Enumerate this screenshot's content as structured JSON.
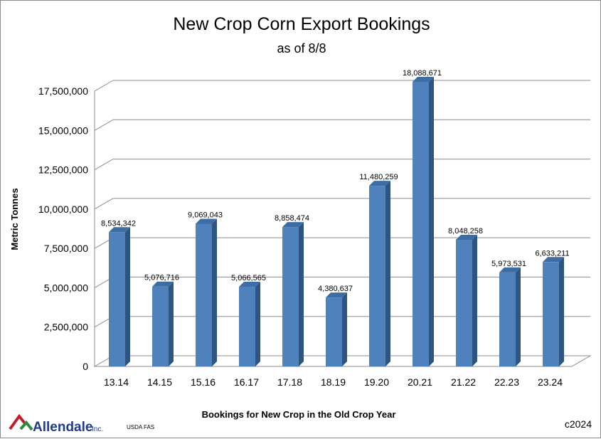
{
  "chart_data": {
    "type": "bar",
    "title": "New Crop Corn Export Bookings",
    "subtitle": "as of 8/8",
    "xlabel": "Bookings for New Crop in the Old Crop Year",
    "ylabel": "Metric Tonnes",
    "categories": [
      "13.14",
      "14.15",
      "15.16",
      "16.17",
      "17.18",
      "18.19",
      "19.20",
      "20.21",
      "21.22",
      "22.23",
      "23.24"
    ],
    "values": [
      8534342,
      5076716,
      9069043,
      5066565,
      8858474,
      4380637,
      11480259,
      18088671,
      8048258,
      5973531,
      6633211
    ],
    "data_labels": [
      "8,534,342",
      "5,076,716",
      "9,069,043",
      "5,066,565",
      "8,858,474",
      "4,380,637",
      "11,480,259",
      "18,088,671",
      "8,048,258",
      "5,973,531",
      "6,633,211"
    ],
    "yticks": [
      "0",
      "2,500,000",
      "5,000,000",
      "7,500,000",
      "10,000,000",
      "12,500,000",
      "15,000,000",
      "17,500,000"
    ],
    "ylim": [
      0,
      17500000
    ],
    "grid": true,
    "legend": "none",
    "colors": {
      "bar_front": "#4f81bd",
      "bar_side": "#2e5480",
      "bar_top": "#3d6da3",
      "grid": "#8c8c8c"
    }
  },
  "footer": {
    "logo_text": "Allendale",
    "logo_suffix": "Inc.",
    "source": "USDA FAS",
    "copyright": "c2024",
    "logo_colors": {
      "red": "#c0202a",
      "green": "#2e8b3e",
      "blue": "#1f3c88"
    }
  }
}
